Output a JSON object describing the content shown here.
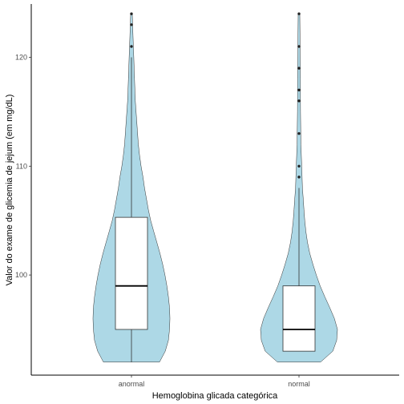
{
  "chart_data": {
    "type": "violin",
    "xlabel": "Hemoglobina glicada categórica",
    "ylabel": "Valor do exame de glicemia de jejum (em mg/dL)",
    "categories": [
      "anormal",
      "normal"
    ],
    "ylim": [
      90.8,
      124.9
    ],
    "yticks": [
      100,
      110,
      120
    ],
    "grid": false,
    "colors": {
      "violin_fill": "#add8e6",
      "outline": "#333333",
      "box_fill": "#ffffff"
    },
    "groups": [
      {
        "name": "anormal",
        "box": {
          "min": 92,
          "q1": 95,
          "median": 99,
          "q3": 105.3,
          "max": 120
        },
        "outliers": [
          121,
          123,
          124
        ],
        "violin_range": [
          92,
          124
        ],
        "density_profile": [
          [
            92,
            0.73
          ],
          [
            93,
            0.88
          ],
          [
            94,
            0.96
          ],
          [
            95,
            0.99
          ],
          [
            96,
            1.0
          ],
          [
            97,
            0.99
          ],
          [
            98,
            0.96
          ],
          [
            99,
            0.92
          ],
          [
            100,
            0.87
          ],
          [
            101,
            0.81
          ],
          [
            102,
            0.74
          ],
          [
            103,
            0.66
          ],
          [
            104,
            0.58
          ],
          [
            105,
            0.5
          ],
          [
            106,
            0.44
          ],
          [
            107,
            0.39
          ],
          [
            108,
            0.34
          ],
          [
            109,
            0.3
          ],
          [
            110,
            0.25
          ],
          [
            111,
            0.21
          ],
          [
            112,
            0.18
          ],
          [
            114,
            0.14
          ],
          [
            116,
            0.1
          ],
          [
            118,
            0.08
          ],
          [
            120,
            0.06
          ],
          [
            122,
            0.04
          ],
          [
            124,
            0.02
          ]
        ]
      },
      {
        "name": "normal",
        "box": {
          "min": 93,
          "q1": 93,
          "median": 95,
          "q3": 99,
          "max": 108
        },
        "outliers": [
          109,
          110,
          113,
          116,
          117,
          119,
          121,
          124
        ],
        "violin_range": [
          92,
          124
        ],
        "density_profile": [
          [
            92,
            0.56
          ],
          [
            93,
            0.88
          ],
          [
            94,
            0.98
          ],
          [
            95,
            1.0
          ],
          [
            96,
            0.92
          ],
          [
            97,
            0.8
          ],
          [
            98,
            0.67
          ],
          [
            99,
            0.55
          ],
          [
            100,
            0.45
          ],
          [
            101,
            0.36
          ],
          [
            102,
            0.28
          ],
          [
            103,
            0.22
          ],
          [
            104,
            0.18
          ],
          [
            105,
            0.15
          ],
          [
            106,
            0.13
          ],
          [
            107,
            0.11
          ],
          [
            108,
            0.09
          ],
          [
            110,
            0.07
          ],
          [
            112,
            0.05
          ],
          [
            115,
            0.04
          ],
          [
            118,
            0.035
          ],
          [
            121,
            0.03
          ],
          [
            124,
            0.02
          ]
        ]
      }
    ]
  }
}
